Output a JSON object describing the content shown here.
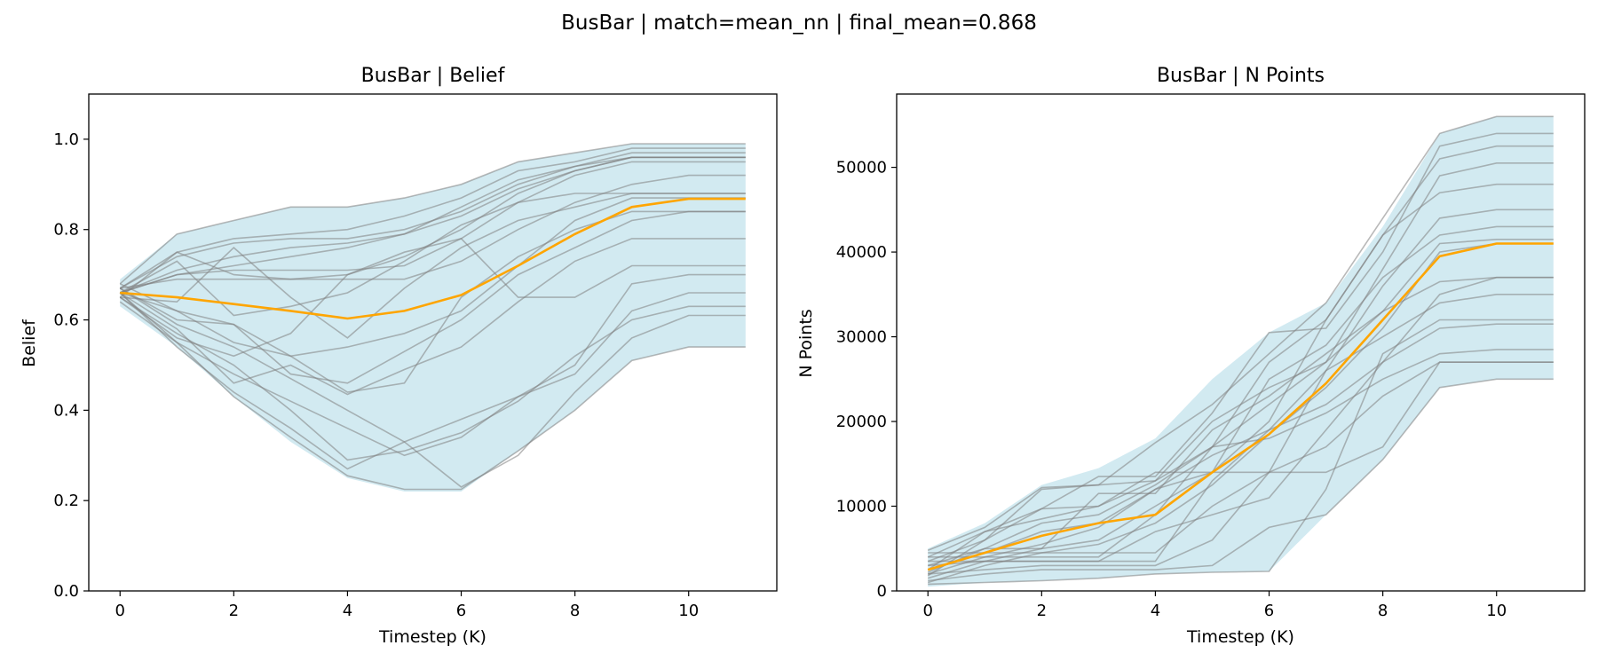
{
  "figure": {
    "suptitle": "BusBar | match=mean_nn | final_mean=0.868"
  },
  "colors": {
    "band": "#add8e6",
    "trace": "#808080",
    "mean": "#ffa500",
    "axes": "#000000"
  },
  "chart_data": [
    {
      "type": "line",
      "title": "BusBar | Belief",
      "xlabel": "Timestep (K)",
      "ylabel": "Belief",
      "xlim": [
        -0.55,
        11.55
      ],
      "ylim": [
        0.0,
        1.1
      ],
      "xticks": [
        0,
        2,
        4,
        6,
        8,
        10
      ],
      "yticks": [
        0.0,
        0.2,
        0.4,
        0.6,
        0.8,
        1.0
      ],
      "ytick_labels": [
        "0.0",
        "0.2",
        "0.4",
        "0.6",
        "0.8",
        "1.0"
      ],
      "grid": false,
      "x": [
        0,
        1,
        2,
        3,
        4,
        5,
        6,
        7,
        8,
        9,
        10,
        11
      ],
      "band": {
        "upper": [
          0.69,
          0.79,
          0.82,
          0.85,
          0.85,
          0.87,
          0.9,
          0.95,
          0.97,
          0.99,
          0.99,
          0.99
        ],
        "lower": [
          0.63,
          0.54,
          0.43,
          0.33,
          0.25,
          0.22,
          0.22,
          0.31,
          0.4,
          0.51,
          0.54,
          0.54
        ]
      },
      "mean": [
        0.66,
        0.65,
        0.635,
        0.62,
        0.603,
        0.62,
        0.655,
        0.72,
        0.79,
        0.85,
        0.868,
        0.868
      ],
      "series": [
        {
          "values": [
            0.68,
            0.79,
            0.82,
            0.85,
            0.85,
            0.87,
            0.9,
            0.95,
            0.97,
            0.99,
            0.99,
            0.99
          ]
        },
        {
          "values": [
            0.67,
            0.75,
            0.78,
            0.79,
            0.8,
            0.83,
            0.87,
            0.93,
            0.95,
            0.98,
            0.98,
            0.98
          ]
        },
        {
          "values": [
            0.67,
            0.74,
            0.77,
            0.78,
            0.78,
            0.8,
            0.84,
            0.9,
            0.94,
            0.97,
            0.97,
            0.97
          ]
        },
        {
          "values": [
            0.66,
            0.71,
            0.74,
            0.76,
            0.77,
            0.79,
            0.83,
            0.89,
            0.93,
            0.96,
            0.96,
            0.96
          ]
        },
        {
          "values": [
            0.66,
            0.7,
            0.72,
            0.74,
            0.76,
            0.79,
            0.85,
            0.91,
            0.94,
            0.96,
            0.96,
            0.96
          ]
        },
        {
          "values": [
            0.65,
            0.75,
            0.7,
            0.69,
            0.7,
            0.74,
            0.8,
            0.88,
            0.93,
            0.96,
            0.96,
            0.96
          ]
        },
        {
          "values": [
            0.66,
            0.7,
            0.71,
            0.71,
            0.71,
            0.72,
            0.78,
            0.86,
            0.92,
            0.95,
            0.95,
            0.95
          ]
        },
        {
          "values": [
            0.67,
            0.69,
            0.69,
            0.69,
            0.69,
            0.69,
            0.73,
            0.8,
            0.86,
            0.9,
            0.92,
            0.92
          ]
        },
        {
          "values": [
            0.65,
            0.64,
            0.76,
            0.65,
            0.56,
            0.67,
            0.76,
            0.82,
            0.85,
            0.88,
            0.88,
            0.88
          ]
        },
        {
          "values": [
            0.66,
            0.73,
            0.61,
            0.63,
            0.66,
            0.73,
            0.81,
            0.86,
            0.88,
            0.88,
            0.88,
            0.88
          ]
        },
        {
          "values": [
            0.67,
            0.6,
            0.59,
            0.52,
            0.44,
            0.46,
            0.65,
            0.74,
            0.8,
            0.84,
            0.84,
            0.84
          ]
        },
        {
          "values": [
            0.66,
            0.58,
            0.46,
            0.5,
            0.435,
            0.49,
            0.54,
            0.64,
            0.73,
            0.78,
            0.78,
            0.78
          ]
        },
        {
          "values": [
            0.65,
            0.56,
            0.52,
            0.57,
            0.7,
            0.75,
            0.78,
            0.65,
            0.65,
            0.72,
            0.72,
            0.72
          ]
        },
        {
          "values": [
            0.64,
            0.55,
            0.48,
            0.42,
            0.36,
            0.3,
            0.34,
            0.43,
            0.5,
            0.68,
            0.7,
            0.7
          ]
        },
        {
          "values": [
            0.66,
            0.54,
            0.44,
            0.36,
            0.27,
            0.33,
            0.38,
            0.43,
            0.48,
            0.62,
            0.66,
            0.66
          ]
        },
        {
          "values": [
            0.65,
            0.57,
            0.5,
            0.4,
            0.29,
            0.31,
            0.35,
            0.42,
            0.52,
            0.6,
            0.63,
            0.63
          ]
        },
        {
          "values": [
            0.66,
            0.55,
            0.43,
            0.34,
            0.255,
            0.225,
            0.225,
            0.31,
            0.4,
            0.51,
            0.54,
            0.54
          ]
        },
        {
          "values": [
            0.67,
            0.59,
            0.54,
            0.47,
            0.4,
            0.33,
            0.23,
            0.3,
            0.44,
            0.56,
            0.61,
            0.61
          ]
        },
        {
          "values": [
            0.66,
            0.62,
            0.59,
            0.48,
            0.46,
            0.53,
            0.6,
            0.7,
            0.76,
            0.82,
            0.84,
            0.84
          ]
        },
        {
          "values": [
            0.68,
            0.62,
            0.55,
            0.52,
            0.54,
            0.57,
            0.62,
            0.72,
            0.82,
            0.87,
            0.87,
            0.87
          ]
        }
      ]
    },
    {
      "type": "line",
      "title": "BusBar | N Points",
      "xlabel": "Timestep (K)",
      "ylabel": "N Points",
      "xlim": [
        -0.55,
        11.55
      ],
      "ylim": [
        0,
        58650
      ],
      "xticks": [
        0,
        2,
        4,
        6,
        8,
        10
      ],
      "yticks": [
        0,
        10000,
        20000,
        30000,
        40000,
        50000
      ],
      "ytick_labels": [
        "0",
        "10000",
        "20000",
        "30000",
        "40000",
        "50000"
      ],
      "grid": false,
      "x": [
        0,
        1,
        2,
        3,
        4,
        5,
        6,
        7,
        8,
        9,
        10,
        11
      ],
      "band": {
        "upper": [
          5000,
          8000,
          12500,
          14500,
          18000,
          25000,
          30500,
          34000,
          43000,
          54000,
          56000,
          56000
        ],
        "lower": [
          500,
          1000,
          1200,
          1500,
          2000,
          2200,
          2300,
          9000,
          15500,
          24000,
          25000,
          25000
        ]
      },
      "mean": [
        2500,
        4500,
        6500,
        8000,
        9000,
        14000,
        18500,
        24500,
        32000,
        39500,
        41000,
        41000
      ],
      "series": [
        {
          "values": [
            4800,
            7500,
            12200,
            12500,
            17500,
            22000,
            28000,
            34000,
            44000,
            54000,
            56000,
            56000
          ]
        },
        {
          "values": [
            4000,
            7000,
            9700,
            13500,
            13500,
            21000,
            30500,
            31000,
            40000,
            52500,
            54000,
            54000
          ]
        },
        {
          "values": [
            3500,
            6000,
            9700,
            10000,
            13000,
            17000,
            27000,
            32000,
            42000,
            51000,
            52500,
            52500
          ]
        },
        {
          "values": [
            3000,
            5000,
            8000,
            9000,
            12500,
            17000,
            22000,
            27000,
            38000,
            49000,
            50500,
            50500
          ]
        },
        {
          "values": [
            2500,
            4500,
            7000,
            8000,
            12000,
            14000,
            20000,
            32000,
            42000,
            47000,
            48000,
            48000
          ]
        },
        {
          "values": [
            2000,
            4000,
            5500,
            7500,
            12000,
            16000,
            19000,
            26000,
            36000,
            44000,
            45000,
            45000
          ]
        },
        {
          "values": [
            1500,
            3500,
            5000,
            6000,
            10000,
            14000,
            25000,
            29000,
            37000,
            42000,
            43000,
            43000
          ]
        },
        {
          "values": [
            1000,
            3000,
            4500,
            5500,
            8000,
            12500,
            18500,
            24000,
            31000,
            40000,
            41000,
            41000
          ]
        },
        {
          "values": [
            3000,
            3500,
            3500,
            3500,
            3500,
            13000,
            19000,
            22000,
            27000,
            35000,
            37000,
            37000
          ]
        },
        {
          "values": [
            2000,
            2500,
            3000,
            3000,
            3000,
            6000,
            14000,
            26000,
            30000,
            34000,
            35000,
            35000
          ]
        },
        {
          "values": [
            1200,
            2000,
            2500,
            2500,
            2500,
            3000,
            7500,
            9000,
            15500,
            24000,
            25000,
            25000
          ]
        },
        {
          "values": [
            800,
            1000,
            1200,
            1500,
            2000,
            2200,
            2300,
            12000,
            28000,
            32000,
            32000,
            32000
          ]
        },
        {
          "values": [
            4500,
            4500,
            4500,
            4500,
            4500,
            10000,
            14000,
            17000,
            23000,
            27000,
            27000,
            27000
          ]
        },
        {
          "values": [
            4000,
            4000,
            4000,
            4000,
            9000,
            17000,
            18000,
            21000,
            25000,
            28000,
            28500,
            28500
          ]
        },
        {
          "values": [
            3500,
            3500,
            3500,
            3500,
            7000,
            9000,
            11000,
            19000,
            27000,
            31000,
            31500,
            31500
          ]
        },
        {
          "values": [
            2500,
            7000,
            8500,
            10000,
            14000,
            14000,
            14000,
            14000,
            17000,
            27000,
            27000,
            27000
          ]
        },
        {
          "values": [
            1800,
            6000,
            12000,
            12500,
            13000,
            20000,
            24000,
            27000,
            33000,
            41000,
            41500,
            41500
          ]
        },
        {
          "values": [
            2200,
            5000,
            5000,
            11500,
            11500,
            19000,
            23000,
            28000,
            33000,
            36500,
            37000,
            37000
          ]
        }
      ]
    }
  ]
}
